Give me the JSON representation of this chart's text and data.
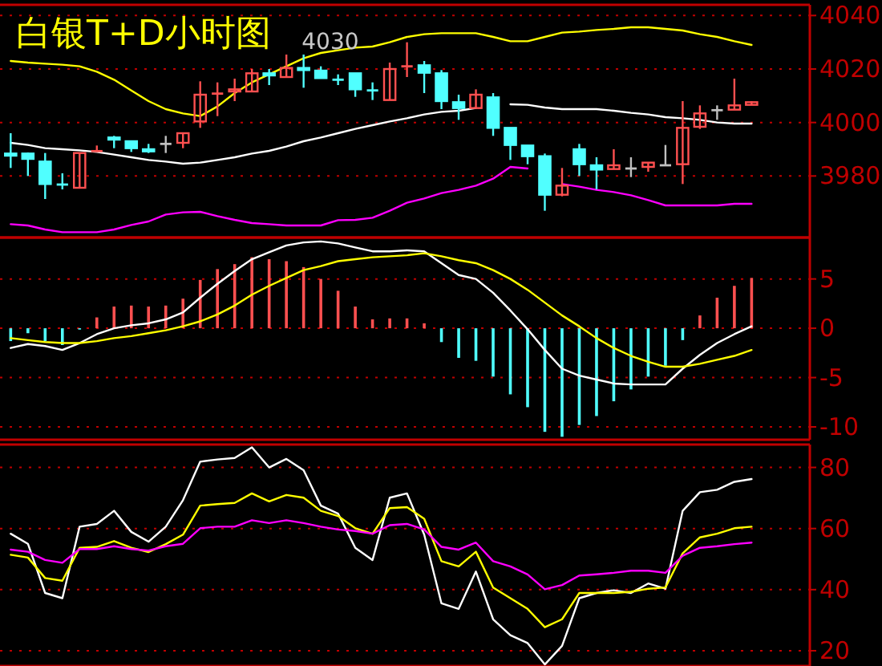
{
  "chart_data": [
    {
      "type": "candlestick",
      "title": "白银T+D小时图",
      "annotations": [
        "4030"
      ],
      "categories": [
        null,
        null,
        null,
        null,
        null,
        null,
        null,
        null,
        null,
        null,
        null,
        null,
        null,
        null,
        null,
        null,
        null,
        null,
        null,
        null,
        null,
        null,
        null,
        null,
        null,
        null,
        null,
        null,
        null,
        null,
        null,
        null,
        null,
        null,
        null,
        null,
        null,
        null,
        null,
        null,
        null,
        null,
        null,
        null
      ],
      "ohlc": [
        [
          3988.4,
          3996,
          3983,
          3987.6
        ],
        [
          3988.4,
          3988.8,
          3980,
          3986.4
        ],
        [
          3985.4,
          3988.6,
          3971.4,
          3977
        ],
        [
          3977,
          3981,
          3975,
          3976.6
        ],
        [
          3975.6,
          3988.6,
          3975.6,
          3988.6
        ],
        [
          3989,
          3991.4,
          3989,
          3989.6
        ],
        [
          3994.4,
          3995,
          3990.4,
          3993.6
        ],
        [
          3993,
          3993,
          3989,
          3990.4
        ],
        [
          3990,
          3992,
          3988.6,
          3989.2
        ],
        [
          3992,
          3995,
          3988.6,
          3992
        ],
        [
          3992.4,
          3996,
          3990.4,
          3996
        ],
        [
          4000.4,
          4015.4,
          3998,
          4010.4
        ],
        [
          4010.6,
          4015,
          4002.4,
          4011
        ],
        [
          4011.6,
          4016.4,
          4008,
          4012.4
        ],
        [
          4011.6,
          4020,
          4011.6,
          4018.4
        ],
        [
          4018.4,
          4020,
          4014,
          4017.6
        ],
        [
          4017,
          4025.4,
          4017,
          4020.4
        ],
        [
          4020.4,
          4025.4,
          4013,
          4019.6
        ],
        [
          4019.4,
          4021,
          4016.6,
          4016.6
        ],
        [
          4016.2,
          4018,
          4014,
          4015.8
        ],
        [
          4018.4,
          4018.4,
          4009.6,
          4012.4
        ],
        [
          4012.2,
          4015,
          4008.4,
          4011.8
        ],
        [
          4008.4,
          4022.4,
          4008.4,
          4020
        ],
        [
          4020.8,
          4030,
          4017,
          4021.2
        ],
        [
          4021.4,
          4023,
          4011,
          4018.6
        ],
        [
          4018.4,
          4019.6,
          4005,
          4008
        ],
        [
          4007.6,
          4010.4,
          4001,
          4005.4
        ],
        [
          4005.4,
          4012.4,
          4005.4,
          4010.4
        ],
        [
          4009.4,
          4011,
          3995,
          3998
        ],
        [
          3998,
          3998,
          3986,
          3991.6
        ],
        [
          3991.4,
          3991.4,
          3984.4,
          3987.4
        ],
        [
          3987.4,
          3988.4,
          3967,
          3973
        ],
        [
          3973,
          3983,
          3972.4,
          3976.4
        ],
        [
          3990,
          3992,
          3980,
          3984.4
        ],
        [
          3984,
          3987,
          3975,
          3982.4
        ],
        [
          3982.6,
          3990,
          3982.6,
          3984
        ],
        [
          3982.8,
          3987,
          3979.6,
          3982.8
        ],
        [
          3983.4,
          3985,
          3981.6,
          3985
        ],
        [
          3984,
          3991.6,
          3984,
          3984
        ],
        [
          3984.4,
          4008,
          3977,
          3998
        ],
        [
          3998.4,
          4006.4,
          3997.6,
          4003.4
        ],
        [
          4004.6,
          4006.4,
          4001,
          4004.6
        ],
        [
          4004.8,
          4016.4,
          4004.8,
          4006.4
        ],
        [
          4006.6,
          4008,
          4006.6,
          4007.6
        ]
      ],
      "colors": [
        "#50ffff",
        "#50ffff",
        "#50ffff",
        "#50ffff",
        "#ff5050",
        "#ff5050",
        "#50ffff",
        "#50ffff",
        "#50ffff",
        "#c0c0c0",
        "#ff5050",
        "#ff5050",
        "#ff5050",
        "#ff5050",
        "#ff5050",
        "#50ffff",
        "#ff5050",
        "#50ffff",
        "#50ffff",
        "#50ffff",
        "#50ffff",
        "#50ffff",
        "#ff5050",
        "#ff5050",
        "#50ffff",
        "#50ffff",
        "#50ffff",
        "#ff5050",
        "#50ffff",
        "#50ffff",
        "#50ffff",
        "#50ffff",
        "#ff5050",
        "#50ffff",
        "#50ffff",
        "#ff5050",
        "#c0c0c0",
        "#ff5050",
        "#c0c0c0",
        "#ff5050",
        "#ff5050",
        "#c0c0c0",
        "#ff5050",
        "#ff5050"
      ],
      "series": [
        {
          "type": "line",
          "color": "#ffff00",
          "values": [
            4023,
            4022.4,
            4022,
            4021.6,
            4021,
            4019,
            4016,
            4012,
            4008,
            4005,
            4003.4,
            4002.4,
            4006,
            4011,
            4015,
            4018,
            4021,
            4024,
            4026,
            4027,
            4028,
            4028.4,
            4030,
            4032,
            4033,
            4033.4,
            4033.4,
            4033.4,
            4032,
            4030.4,
            4030.4,
            4032,
            4033.6,
            4034,
            4034.6,
            4035,
            4035.6,
            4035.6,
            4035,
            4034.4,
            4033,
            4032,
            4030.4,
            4029
          ]
        },
        {
          "type": "line",
          "color": "#ffffff",
          "values": [
            3992.4,
            3991.6,
            3990.4,
            3990,
            3989.6,
            3989,
            3988,
            3987,
            3986,
            3985.4,
            3984.6,
            3985,
            3986,
            3987,
            3988.4,
            3989.4,
            3991,
            3993,
            3994.4,
            3996,
            3997.6,
            3999,
            4000.4,
            4001.6,
            4003,
            4004,
            4004.4,
            4005.4,
            null,
            4006.8,
            4006.6,
            4005.6,
            4005,
            4005,
            4005,
            4004.4,
            4003.6,
            4003,
            4002,
            4001.6,
            4001,
            4000,
            3999.6,
            3999.6
          ]
        },
        {
          "type": "line",
          "color": "#ff00ff",
          "values": [
            3962,
            3961.5,
            3960,
            3959,
            3959,
            3959,
            3960,
            3961.7,
            3963,
            3965.6,
            3966.4,
            3966.6,
            3965,
            3963.6,
            3962.4,
            3962,
            3961.5,
            3961.5,
            3961.5,
            3963.5,
            3963.6,
            3964.4,
            3967,
            3970,
            3971.6,
            3973.6,
            3974.8,
            3976.4,
            3979,
            3983.4,
            3982.8,
            null,
            3977,
            3976,
            3974.8,
            3974,
            3972.8,
            3971,
            3969,
            3969,
            3969,
            3969,
            3969.6,
            3969.6
          ]
        }
      ],
      "ylim": [
        3957,
        4044
      ],
      "yticks": [
        3980,
        4000,
        4020,
        4040
      ],
      "grid": "y",
      "tick_labels": "y"
    },
    {
      "type": "bar",
      "categories": [
        null,
        null,
        null,
        null,
        null,
        null,
        null,
        null,
        null,
        null,
        null,
        null,
        null,
        null,
        null,
        null,
        null,
        null,
        null,
        null,
        null,
        null,
        null,
        null,
        null,
        null,
        null,
        null,
        null,
        null,
        null,
        null,
        null,
        null,
        null,
        null,
        null,
        null,
        null,
        null,
        null,
        null,
        null,
        null
      ],
      "series": [
        {
          "type": "bar",
          "colors": [
            "#50ffff",
            "#50ffff",
            "#50ffff",
            "#50ffff",
            "#50ffff",
            "#ff5050",
            "#ff5050",
            "#ff5050",
            "#ff5050",
            "#ff5050",
            "#ff5050",
            "#ff5050",
            "#ff5050",
            "#ff5050",
            "#ff5050",
            "#ff5050",
            "#ff5050",
            "#ff5050",
            "#ff5050",
            "#ff5050",
            "#ff5050",
            "#ff5050",
            "#ff5050",
            "#ff5050",
            "#ff5050",
            "#50ffff",
            "#50ffff",
            "#50ffff",
            "#50ffff",
            "#50ffff",
            "#50ffff",
            "#50ffff",
            "#50ffff",
            "#50ffff",
            "#50ffff",
            "#50ffff",
            "#50ffff",
            "#50ffff",
            "#50ffff",
            "#50ffff",
            "#ff5050",
            "#ff5050",
            "#ff5050",
            "#ff5050"
          ],
          "values": [
            -1.3,
            -0.5,
            -1.3,
            -1.7,
            -0.1,
            1.1,
            2.2,
            2.3,
            2.2,
            2.3,
            3.0,
            4.9,
            6.0,
            6.5,
            7.2,
            7.0,
            6.8,
            6.2,
            5.0,
            3.8,
            2.2,
            0.9,
            1.0,
            1.0,
            0.5,
            -1.4,
            -3.0,
            -3.3,
            -4.9,
            -6.7,
            -8.0,
            -10.5,
            -11.0,
            -9.8,
            -8.9,
            -7.4,
            -6.2,
            -4.9,
            -3.8,
            -1.2,
            1.3,
            3.1,
            4.3,
            5.1
          ]
        },
        {
          "type": "line",
          "color": "#ffffff",
          "values": [
            -2.0,
            -1.6,
            -1.8,
            -2.2,
            -1.5,
            -0.6,
            0,
            0.3,
            0.5,
            0.9,
            1.6,
            3.1,
            4.5,
            5.8,
            7.0,
            7.7,
            8.4,
            8.7,
            8.8,
            8.6,
            8.2,
            7.8,
            7.8,
            7.9,
            7.8,
            6.6,
            5.4,
            5.0,
            3.6,
            1.8,
            -0.1,
            -2.2,
            -4.1,
            -4.8,
            -5.2,
            -5.6,
            -5.7,
            -5.7,
            -5.7,
            -4.1,
            -2.7,
            -1.5,
            -0.6,
            0.2
          ]
        },
        {
          "type": "line",
          "color": "#ffff00",
          "values": [
            -1.0,
            -1.2,
            -1.4,
            -1.5,
            -1.5,
            -1.3,
            -1.0,
            -0.8,
            -0.5,
            -0.2,
            0.2,
            0.7,
            1.4,
            2.3,
            3.4,
            4.3,
            5.1,
            5.9,
            6.3,
            6.8,
            7.0,
            7.2,
            7.3,
            7.4,
            7.6,
            7.3,
            6.9,
            6.6,
            5.9,
            5.0,
            3.9,
            2.6,
            1.3,
            0.2,
            -1.0,
            -2.0,
            -2.8,
            -3.4,
            -3.9,
            -3.9,
            -3.6,
            -3.2,
            -2.8,
            -2.2
          ]
        }
      ],
      "ylim": [
        -11.3,
        9.2
      ],
      "yticks": [
        -10,
        -5,
        0,
        5
      ],
      "grid": "y",
      "tick_labels": "y"
    },
    {
      "type": "line",
      "categories": [
        null,
        null,
        null,
        null,
        null,
        null,
        null,
        null,
        null,
        null,
        null,
        null,
        null,
        null,
        null,
        null,
        null,
        null,
        null,
        null,
        null,
        null,
        null,
        null,
        null,
        null,
        null,
        null,
        null,
        null,
        null,
        null,
        null,
        null,
        null,
        null,
        null,
        null,
        null,
        null,
        null,
        null,
        null,
        null
      ],
      "series": [
        {
          "color": "#ffffff",
          "values": [
            58.3,
            55.0,
            38.9,
            37.2,
            60.6,
            61.5,
            65.8,
            58.9,
            55.7,
            60.6,
            69.3,
            81.9,
            82.6,
            83.1,
            86.6,
            80.0,
            82.8,
            79.1,
            67.5,
            64.9,
            53.7,
            49.7,
            70.1,
            71.5,
            58.0,
            35.5,
            33.7,
            45.9,
            30.3,
            25.1,
            22.5,
            15.5,
            21.6,
            37.2,
            38.9,
            39.8,
            38.9,
            42.0,
            40.3,
            65.8,
            71.9,
            72.7,
            75.3,
            76.2
          ]
        },
        {
          "color": "#ffff00",
          "values": [
            51.4,
            50.5,
            43.8,
            42.9,
            53.7,
            54.0,
            55.9,
            53.7,
            52.3,
            54.9,
            58.0,
            67.5,
            68.0,
            68.4,
            71.5,
            68.9,
            71.0,
            70.1,
            65.8,
            64.1,
            60.1,
            58.3,
            66.7,
            67.0,
            63.2,
            49.3,
            47.6,
            52.4,
            40.7,
            37.2,
            33.7,
            27.7,
            30.3,
            38.9,
            38.9,
            38.9,
            39.3,
            40.3,
            40.7,
            51.9,
            57.1,
            58.3,
            60.1,
            60.6
          ]
        },
        {
          "color": "#ff00ff",
          "values": [
            53.1,
            52.4,
            49.7,
            48.8,
            53.3,
            53.3,
            54.2,
            53.3,
            52.8,
            54.2,
            55.0,
            60.1,
            60.6,
            60.6,
            62.7,
            61.8,
            62.7,
            61.8,
            60.6,
            59.7,
            59.2,
            58.3,
            61.1,
            61.5,
            59.7,
            54.0,
            53.1,
            55.4,
            49.3,
            47.6,
            45.0,
            40.1,
            41.5,
            44.6,
            45.0,
            45.5,
            46.2,
            46.2,
            45.5,
            51.1,
            53.7,
            54.2,
            54.9,
            55.4
          ]
        }
      ],
      "ylim": [
        15,
        87.5
      ],
      "yticks": [
        20,
        40,
        60,
        80
      ],
      "grid": "y",
      "tick_labels": "y"
    }
  ]
}
